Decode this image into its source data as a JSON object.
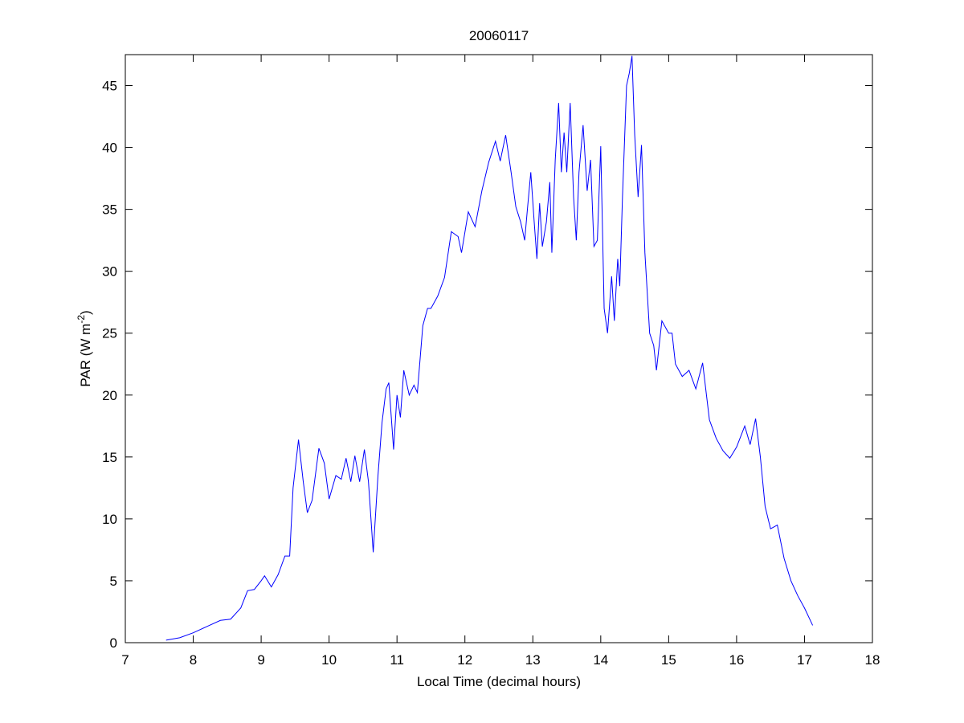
{
  "chart_data": {
    "type": "line",
    "title": "20060117",
    "xlabel": "Local Time (decimal hours)",
    "ylabel": [
      "PAR (W m",
      "-2",
      ")"
    ],
    "xlim": [
      7,
      18
    ],
    "xticks": [
      7,
      8,
      9,
      10,
      11,
      12,
      13,
      14,
      15,
      16,
      17,
      18
    ],
    "ylim": [
      0,
      47.5
    ],
    "yticks": [
      0,
      5,
      10,
      15,
      20,
      25,
      30,
      35,
      40,
      45
    ],
    "grid": false,
    "series": [
      {
        "color": "#0000ff",
        "x": [
          7.6,
          7.8,
          8.0,
          8.2,
          8.4,
          8.55,
          8.7,
          8.8,
          8.9,
          9.0,
          9.05,
          9.15,
          9.25,
          9.35,
          9.42,
          9.47,
          9.55,
          9.62,
          9.68,
          9.75,
          9.85,
          9.93,
          10.0,
          10.1,
          10.18,
          10.25,
          10.32,
          10.38,
          10.45,
          10.52,
          10.58,
          10.65,
          10.72,
          10.78,
          10.84,
          10.88,
          10.95,
          11.0,
          11.05,
          11.1,
          11.18,
          11.25,
          11.3,
          11.38,
          11.45,
          11.5,
          11.6,
          11.7,
          11.8,
          11.9,
          11.95,
          12.05,
          12.15,
          12.25,
          12.35,
          12.45,
          12.52,
          12.6,
          12.68,
          12.75,
          12.82,
          12.88,
          12.92,
          12.97,
          13.02,
          13.06,
          13.1,
          13.14,
          13.2,
          13.25,
          13.28,
          13.33,
          13.38,
          13.42,
          13.46,
          13.5,
          13.55,
          13.6,
          13.64,
          13.68,
          13.74,
          13.8,
          13.85,
          13.9,
          13.95,
          14.0,
          14.05,
          14.1,
          14.16,
          14.2,
          14.25,
          14.28,
          14.32,
          14.38,
          14.42,
          14.46,
          14.5,
          14.55,
          14.6,
          14.65,
          14.72,
          14.78,
          14.82,
          14.9,
          15.0,
          15.05,
          15.1,
          15.2,
          15.3,
          15.4,
          15.5,
          15.6,
          15.7,
          15.8,
          15.9,
          16.0,
          16.12,
          16.2,
          16.28,
          16.35,
          16.42,
          16.5,
          16.6,
          16.7,
          16.8,
          16.9,
          17.0,
          17.12
        ],
        "values": [
          0.2,
          0.4,
          0.8,
          1.3,
          1.8,
          1.9,
          2.8,
          4.2,
          4.3,
          5.0,
          5.4,
          4.5,
          5.5,
          7.0,
          7.0,
          12.5,
          16.4,
          13.0,
          10.5,
          11.5,
          15.7,
          14.5,
          11.6,
          13.5,
          13.2,
          14.9,
          13.0,
          15.1,
          13.0,
          15.6,
          13.0,
          7.3,
          13.5,
          17.8,
          20.5,
          21.0,
          15.6,
          20.0,
          18.2,
          22.0,
          20.0,
          20.8,
          20.2,
          25.6,
          27.0,
          27.0,
          28.0,
          29.5,
          33.2,
          32.8,
          31.5,
          34.8,
          33.6,
          36.5,
          38.8,
          40.5,
          38.9,
          41.0,
          38.0,
          35.2,
          34.0,
          32.5,
          35.0,
          38.0,
          34.0,
          31.0,
          35.5,
          32.0,
          34.0,
          37.2,
          31.5,
          39.0,
          43.6,
          38.0,
          41.2,
          38.0,
          43.6,
          36.0,
          32.5,
          38.0,
          41.8,
          36.5,
          39.0,
          32.0,
          32.5,
          40.1,
          27.0,
          25.0,
          29.6,
          26.0,
          31.0,
          28.8,
          36.0,
          45.0,
          46.0,
          47.4,
          41.0,
          36.0,
          40.2,
          31.5,
          25.0,
          24.0,
          22.0,
          26.0,
          25.0,
          25.0,
          22.5,
          21.5,
          22.0,
          20.5,
          22.6,
          18.0,
          16.5,
          15.5,
          14.9,
          15.8,
          17.5,
          16.0,
          18.1,
          15.0,
          11.0,
          9.2,
          9.5,
          6.8,
          5.0,
          3.8,
          2.8,
          1.4
        ]
      }
    ]
  }
}
